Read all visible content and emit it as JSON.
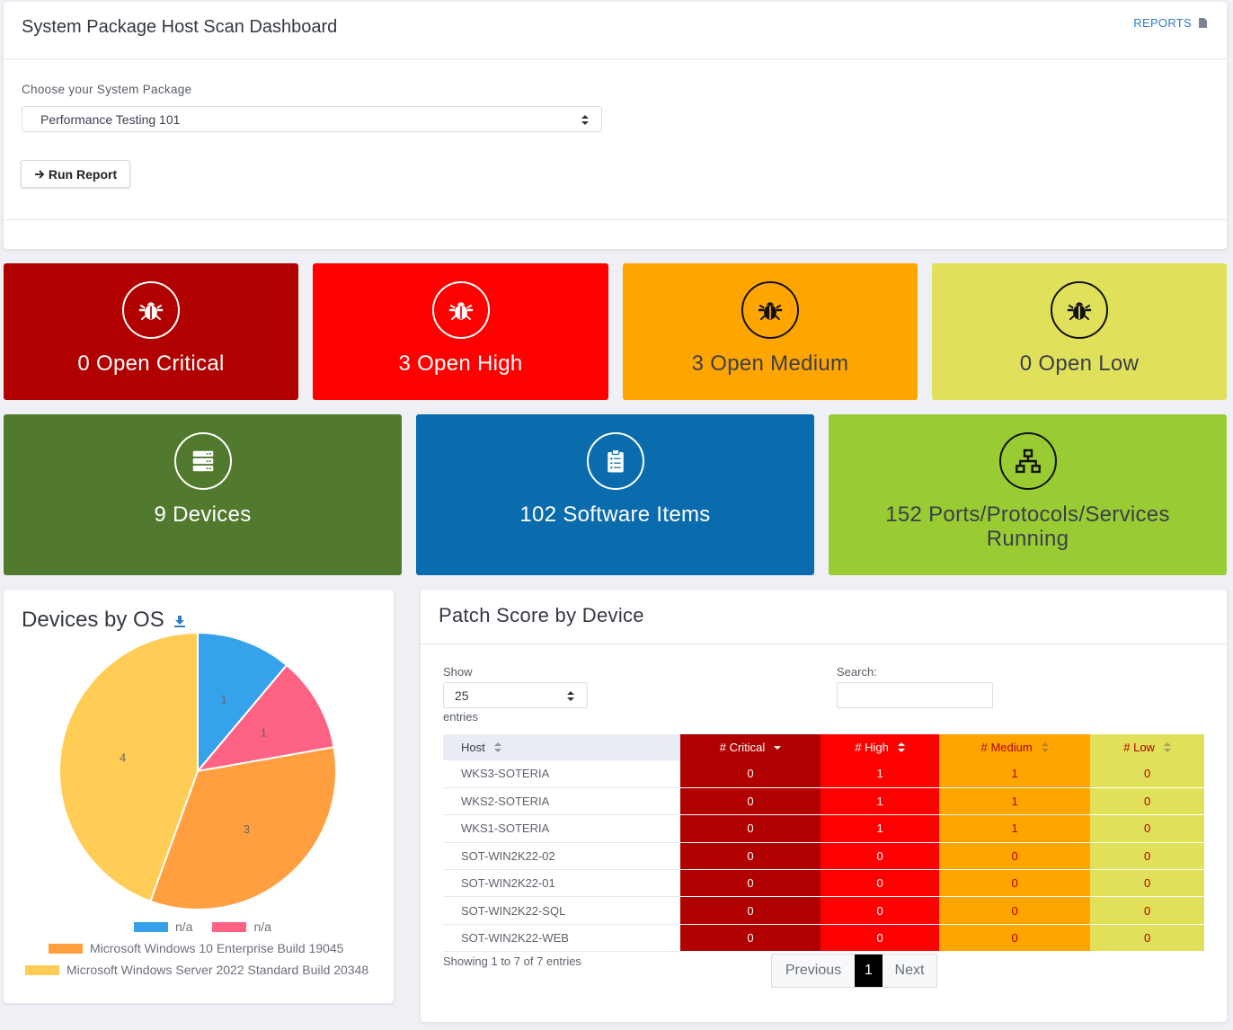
{
  "header": {
    "title": "System Package Host Scan Dashboard",
    "reports_label": "REPORTS"
  },
  "form": {
    "package_label": "Choose your System Package",
    "package_value": "Performance Testing 101",
    "run_label": "Run Report"
  },
  "stats": {
    "critical": "0 Open Critical",
    "high": "3 Open High",
    "medium": "3 Open Medium",
    "low": "0 Open Low",
    "devices": "9 Devices",
    "software": "102 Software Items",
    "ports": "152 Ports/Protocols/Services Running"
  },
  "colors": {
    "critical": "#b00000",
    "high": "#ff0000",
    "medium": "#ffa500",
    "low": "#e1e05a",
    "devices": "#527a2f",
    "software": "#0a6cad",
    "ports": "#99cc33"
  },
  "pie": {
    "title": "Devices by OS",
    "legend": [
      {
        "label": "n/a",
        "color": "#36a2eb"
      },
      {
        "label": "n/a",
        "color": "#ff6384"
      },
      {
        "label": "Microsoft Windows 10 Enterprise Build 19045",
        "color": "#ff9f40"
      },
      {
        "label": "Microsoft Windows Server 2022 Standard Build 20348",
        "color": "#ffcd56"
      }
    ]
  },
  "chart_data": {
    "type": "pie",
    "title": "Devices by OS",
    "categories": [
      "n/a",
      "n/a",
      "Microsoft Windows 10 Enterprise Build 19045",
      "Microsoft Windows Server 2022 Standard Build 20348"
    ],
    "values": [
      1,
      1,
      3,
      4
    ],
    "colors": [
      "#36a2eb",
      "#ff6384",
      "#ff9f40",
      "#ffcd56"
    ],
    "legend_position": "bottom"
  },
  "table": {
    "title": "Patch Score by Device",
    "show_label": "Show",
    "entries_value": "25",
    "entries_label": "entries",
    "search_label": "Search:",
    "columns": [
      "Host",
      "# Critical",
      "# High",
      "# Medium",
      "# Low"
    ],
    "rows": [
      [
        "WKS3-SOTERIA",
        "0",
        "1",
        "1",
        "0"
      ],
      [
        "WKS2-SOTERIA",
        "0",
        "1",
        "1",
        "0"
      ],
      [
        "WKS1-SOTERIA",
        "0",
        "1",
        "1",
        "0"
      ],
      [
        "SOT-WIN2K22-02",
        "0",
        "0",
        "0",
        "0"
      ],
      [
        "SOT-WIN2K22-01",
        "0",
        "0",
        "0",
        "0"
      ],
      [
        "SOT-WIN2K22-SQL",
        "0",
        "0",
        "0",
        "0"
      ],
      [
        "SOT-WIN2K22-WEB",
        "0",
        "0",
        "0",
        "0"
      ]
    ],
    "info": "Showing 1 to 7 of 7 entries",
    "pager": {
      "previous": "Previous",
      "current": "1",
      "next": "Next"
    }
  }
}
